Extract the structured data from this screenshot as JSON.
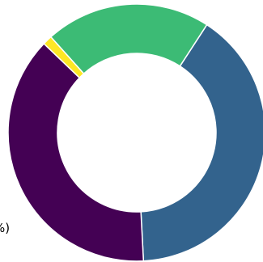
{
  "chart_data": {
    "type": "pie",
    "style": "donut",
    "slices": [
      {
        "value": 40,
        "color": "#33638d"
      },
      {
        "value": 38,
        "color": "#440154"
      },
      {
        "value": 1.2,
        "color": "#fde725"
      },
      {
        "value": 20.8,
        "color": "#3cbb75"
      }
    ],
    "start_angle_deg": 33,
    "direction": "clockwise",
    "visible_label_fragments": [
      ")",
      "%)"
    ]
  }
}
